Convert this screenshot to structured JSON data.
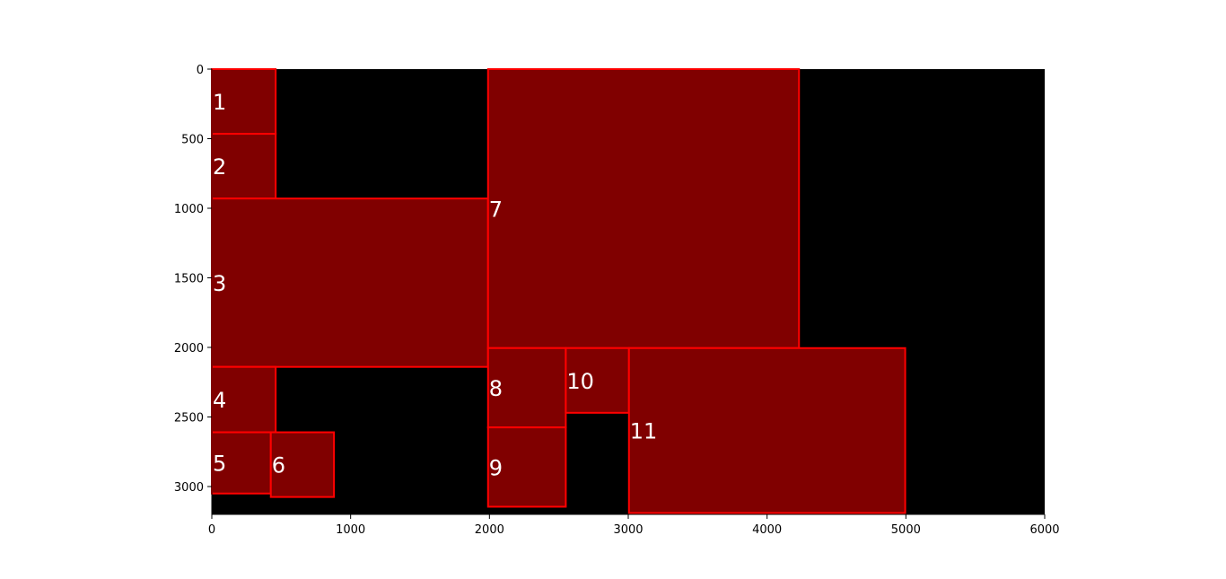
{
  "chart_data": {
    "type": "rectangles",
    "title": "",
    "xlabel": "",
    "ylabel": "",
    "xlim": [
      0,
      6000
    ],
    "ylim": [
      3200,
      0
    ],
    "y_inverted": true,
    "grid": false,
    "background_color": "#000000",
    "fill_color": "#800000",
    "edge_color": "#ff0000",
    "label_color": "#ffffff",
    "x_ticks": [
      "0",
      "1000",
      "2000",
      "3000",
      "4000",
      "5000",
      "6000"
    ],
    "x_tick_values": [
      0,
      1000,
      2000,
      3000,
      4000,
      5000,
      6000
    ],
    "y_ticks": [
      "0",
      "500",
      "1000",
      "1500",
      "2000",
      "2500",
      "3000"
    ],
    "y_tick_values": [
      0,
      500,
      1000,
      1500,
      2000,
      2500,
      3000
    ],
    "rectangles": [
      {
        "label": "1",
        "x0": 0,
        "y0": 0,
        "x1": 460,
        "y1": 465
      },
      {
        "label": "2",
        "x0": 0,
        "y0": 465,
        "x1": 460,
        "y1": 930
      },
      {
        "label": "3",
        "x0": 0,
        "y0": 930,
        "x1": 1990,
        "y1": 2140
      },
      {
        "label": "4",
        "x0": 0,
        "y0": 2140,
        "x1": 460,
        "y1": 2610
      },
      {
        "label": "5",
        "x0": 0,
        "y0": 2610,
        "x1": 425,
        "y1": 3050
      },
      {
        "label": "6",
        "x0": 425,
        "y0": 2610,
        "x1": 880,
        "y1": 3075
      },
      {
        "label": "7",
        "x0": 1990,
        "y0": 0,
        "x1": 4230,
        "y1": 2005
      },
      {
        "label": "8",
        "x0": 1990,
        "y0": 2005,
        "x1": 2550,
        "y1": 2575
      },
      {
        "label": "9",
        "x0": 1990,
        "y0": 2575,
        "x1": 2550,
        "y1": 3145
      },
      {
        "label": "10",
        "x0": 2550,
        "y0": 2005,
        "x1": 3005,
        "y1": 2470
      },
      {
        "label": "11",
        "x0": 3005,
        "y0": 2005,
        "x1": 4995,
        "y1": 3190
      }
    ]
  }
}
